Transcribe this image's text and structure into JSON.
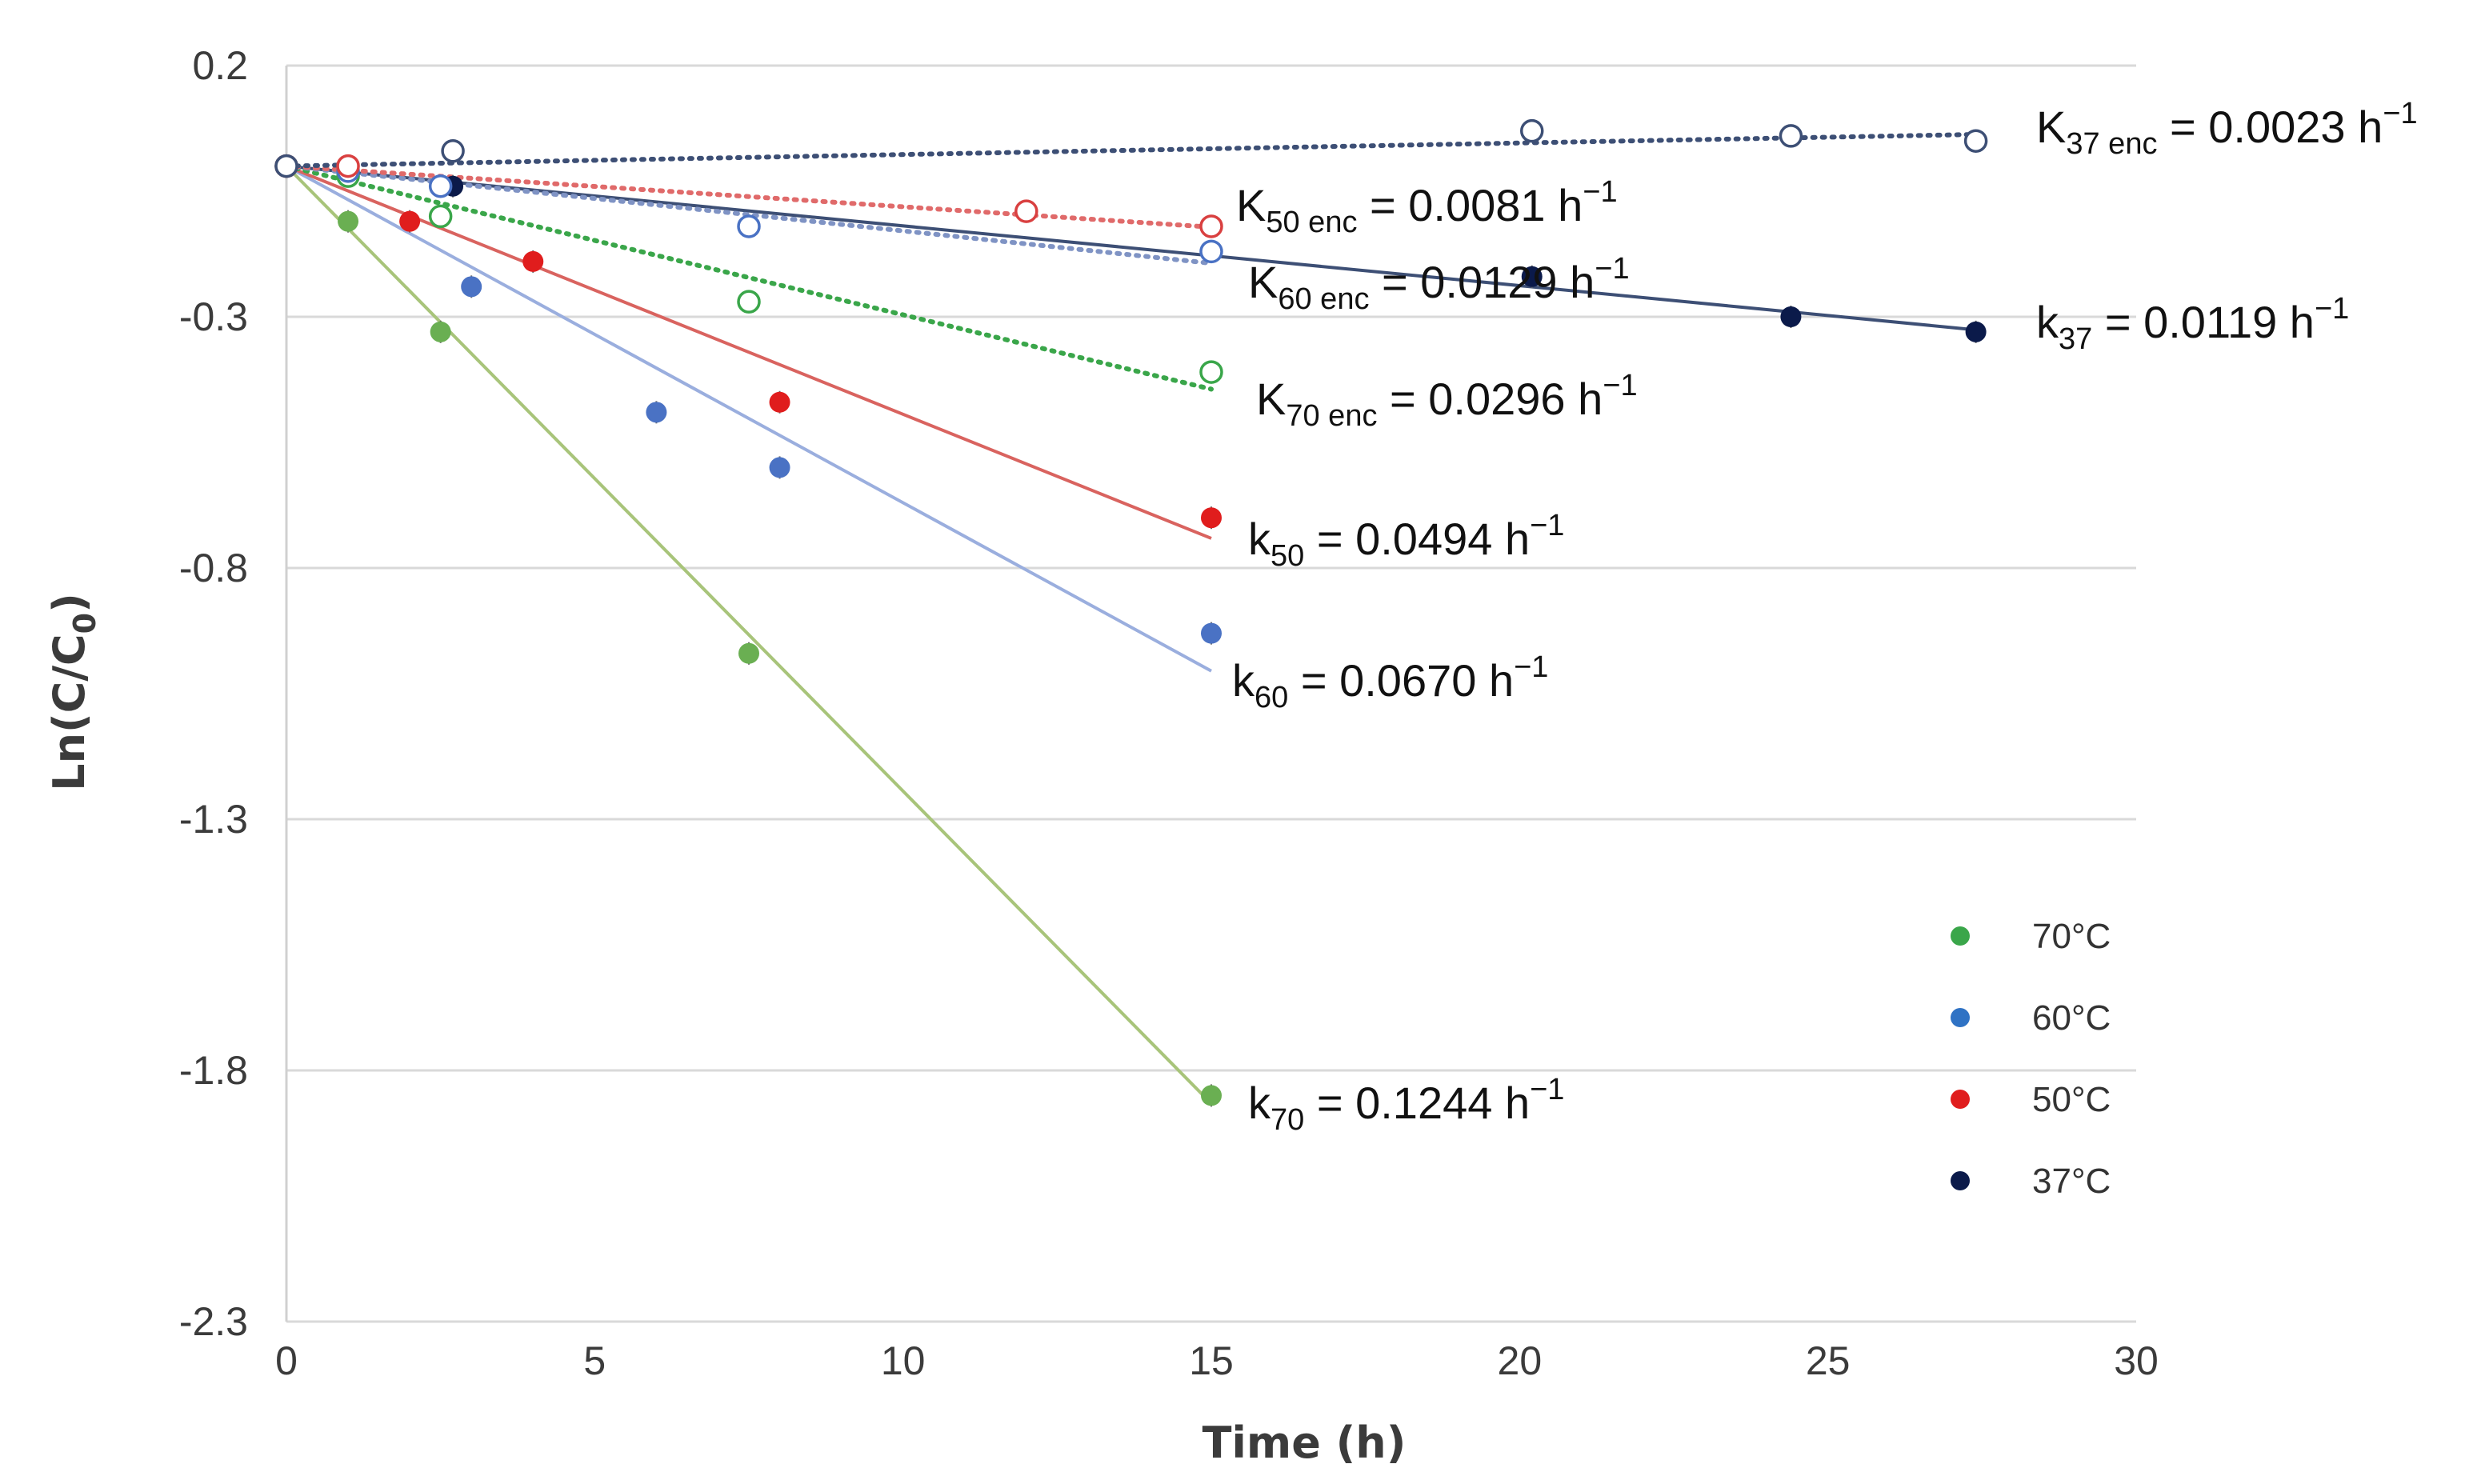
{
  "chart_data": {
    "type": "scatter",
    "xlabel": "Time (h)",
    "ylabel_parts": [
      "Ln(C/C",
      "0",
      ")"
    ],
    "xlim": [
      0,
      30
    ],
    "ylim": [
      -2.3,
      0.2
    ],
    "x_ticks": [
      "0",
      "5",
      "10",
      "15",
      "20",
      "25",
      "30"
    ],
    "y_ticks": [
      "0.2",
      "-0.3",
      "-0.8",
      "-1.3",
      "-1.8",
      "-2.3"
    ],
    "grid": "horizontal",
    "legend_position": "bottom-right",
    "legend": [
      {
        "label": "70°C",
        "color": "#3aa64a"
      },
      {
        "label": "60°C",
        "color": "#2f72c4"
      },
      {
        "label": "50°C",
        "color": "#e01d1d"
      },
      {
        "label": "37°C",
        "color": "#0b1a4a"
      }
    ],
    "series": [
      {
        "name": "70°C",
        "marker": "filled",
        "color": "#6aaf52",
        "line_color": "#a8c47a",
        "line_style": "solid",
        "x": [
          0,
          1,
          2.5,
          7.5,
          15
        ],
        "y": [
          0,
          -0.11,
          -0.33,
          -0.97,
          -1.85
        ],
        "fit_x": [
          0,
          15
        ],
        "fit_y": [
          0,
          -1.866
        ]
      },
      {
        "name": "60°C",
        "marker": "filled",
        "color": "#4a72c4",
        "line_color": "#9aaede",
        "line_style": "solid",
        "x": [
          0,
          1,
          3,
          6,
          8,
          15
        ],
        "y": [
          0,
          -0.02,
          -0.24,
          -0.49,
          -0.6,
          -0.93
        ],
        "fit_x": [
          0,
          15
        ],
        "fit_y": [
          0,
          -1.005
        ]
      },
      {
        "name": "50°C",
        "marker": "filled",
        "color": "#e01d1d",
        "line_color": "#d9635f",
        "line_style": "solid",
        "x": [
          0,
          2,
          4,
          8,
          15
        ],
        "y": [
          0,
          -0.11,
          -0.19,
          -0.47,
          -0.7
        ],
        "fit_x": [
          0,
          15
        ],
        "fit_y": [
          0,
          -0.741
        ]
      },
      {
        "name": "37°C",
        "marker": "filled",
        "color": "#0b1a4a",
        "line_color": "#3d4f75",
        "line_style": "solid",
        "x": [
          0,
          2.7,
          20.2,
          24.4,
          27.4
        ],
        "y": [
          0,
          -0.04,
          -0.22,
          -0.3,
          -0.33
        ],
        "fit_x": [
          0,
          27.4
        ],
        "fit_y": [
          0,
          -0.326
        ]
      },
      {
        "name": "70°C enc",
        "marker": "open",
        "color": "#3aa64a",
        "line_color": "#3aa64a",
        "line_style": "dotted",
        "x": [
          0,
          1,
          2.5,
          7.5,
          15
        ],
        "y": [
          0,
          -0.02,
          -0.1,
          -0.27,
          -0.41
        ],
        "fit_x": [
          0,
          15
        ],
        "fit_y": [
          0,
          -0.444
        ]
      },
      {
        "name": "60°C enc",
        "marker": "open",
        "color": "#4a72c4",
        "line_color": "#7f93c4",
        "line_style": "dotted",
        "x": [
          0,
          1,
          2.5,
          7.5,
          15
        ],
        "y": [
          0,
          -0.01,
          -0.04,
          -0.12,
          -0.17
        ],
        "fit_x": [
          0,
          15
        ],
        "fit_y": [
          0,
          -0.1935
        ]
      },
      {
        "name": "50°C enc",
        "marker": "open",
        "color": "#d94040",
        "line_color": "#e06a6a",
        "line_style": "dotted",
        "x": [
          0,
          1,
          12,
          15
        ],
        "y": [
          0,
          0.0,
          -0.09,
          -0.12
        ],
        "fit_x": [
          0,
          15
        ],
        "fit_y": [
          0,
          -0.1215
        ]
      },
      {
        "name": "37°C enc",
        "marker": "open",
        "color": "#3d4f75",
        "line_color": "#3d4f75",
        "line_style": "dotted",
        "x": [
          0,
          2.7,
          20.2,
          24.4,
          27.4
        ],
        "y": [
          0,
          0.03,
          0.07,
          0.06,
          0.05
        ],
        "fit_x": [
          0,
          27.4
        ],
        "fit_y": [
          0,
          0.063
        ]
      }
    ],
    "annotations": [
      {
        "letter": "K",
        "sub": "37 enc",
        "text": " = 0.0023 h",
        "sup": "−1"
      },
      {
        "letter": "K",
        "sub": "50 enc",
        "text": " = 0.0081 h",
        "sup": "−1"
      },
      {
        "letter": "K",
        "sub": "60 enc",
        "text": " = 0.0129 h",
        "sup": "−1"
      },
      {
        "letter": "k",
        "sub": "37",
        "text": " = 0.0119 h",
        "sup": "−1"
      },
      {
        "letter": "K",
        "sub": "70 enc",
        "text": " = 0.0296 h",
        "sup": "−1"
      },
      {
        "letter": "k",
        "sub": "50",
        "text": " = 0.0494 h",
        "sup": "−1"
      },
      {
        "letter": "k",
        "sub": "60",
        "text": " = 0.0670 h",
        "sup": "−1"
      },
      {
        "letter": "k",
        "sub": "70",
        "text": " = 0.1244 h",
        "sup": "−1"
      }
    ]
  }
}
